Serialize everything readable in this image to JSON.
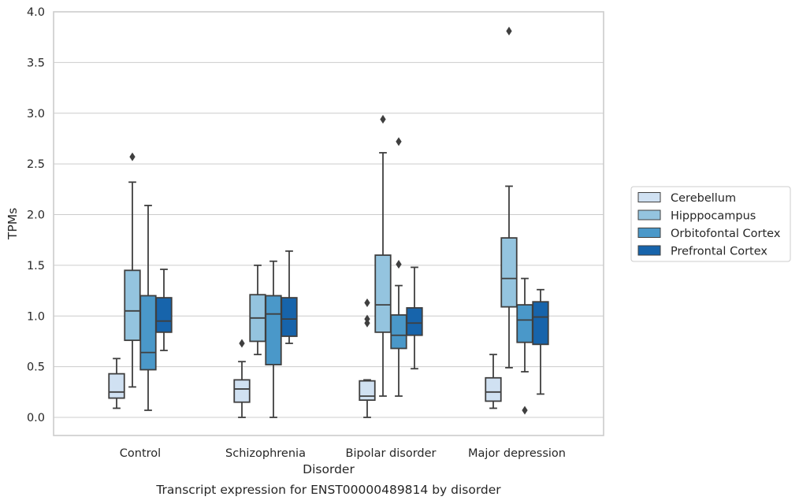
{
  "chart_data": {
    "type": "box",
    "title": "",
    "xlabel": "Disorder",
    "ylabel": "TPMs",
    "caption": "Transcript expression for ENST00000489814 by disorder",
    "ylim": [
      -0.18,
      4.0
    ],
    "yticks": [
      "0.0",
      "0.5",
      "1.0",
      "1.5",
      "2.0",
      "2.5",
      "3.0",
      "3.5",
      "4.0"
    ],
    "grid": "horizontal",
    "legend_position": "right",
    "categories": [
      "Control",
      "Schizophrenia",
      "Bipolar disorder",
      "Major depression"
    ],
    "series": [
      {
        "name": "Cerebellum",
        "color": "#d0e1f2",
        "boxes": [
          {
            "whislo": 0.09,
            "q1": 0.19,
            "med": 0.25,
            "q3": 0.43,
            "whishi": 0.58,
            "fliers": []
          },
          {
            "whislo": 0.0,
            "q1": 0.15,
            "med": 0.28,
            "q3": 0.37,
            "whishi": 0.55,
            "fliers": [
              0.73
            ]
          },
          {
            "whislo": 0.0,
            "q1": 0.17,
            "med": 0.21,
            "q3": 0.36,
            "whishi": 0.37,
            "fliers": [
              0.93,
              0.97,
              1.13
            ]
          },
          {
            "whislo": 0.09,
            "q1": 0.16,
            "med": 0.25,
            "q3": 0.39,
            "whishi": 0.62,
            "fliers": []
          }
        ]
      },
      {
        "name": "Hipppocampus",
        "color": "#94c4df",
        "boxes": [
          {
            "whislo": 0.3,
            "q1": 0.76,
            "med": 1.05,
            "q3": 1.45,
            "whishi": 2.32,
            "fliers": [
              2.57
            ]
          },
          {
            "whislo": 0.62,
            "q1": 0.75,
            "med": 0.98,
            "q3": 1.21,
            "whishi": 1.5,
            "fliers": []
          },
          {
            "whislo": 0.21,
            "q1": 0.84,
            "med": 1.11,
            "q3": 1.6,
            "whishi": 2.61,
            "fliers": [
              2.94
            ]
          },
          {
            "whislo": 0.49,
            "q1": 1.09,
            "med": 1.37,
            "q3": 1.77,
            "whishi": 2.28,
            "fliers": [
              3.81
            ]
          }
        ]
      },
      {
        "name": "Orbitofontal Cortex",
        "color": "#4a98c9",
        "boxes": [
          {
            "whislo": 0.07,
            "q1": 0.47,
            "med": 0.64,
            "q3": 1.2,
            "whishi": 2.09,
            "fliers": []
          },
          {
            "whislo": 0.0,
            "q1": 0.52,
            "med": 1.02,
            "q3": 1.2,
            "whishi": 1.54,
            "fliers": []
          },
          {
            "whislo": 0.21,
            "q1": 0.68,
            "med": 0.81,
            "q3": 1.01,
            "whishi": 1.3,
            "fliers": [
              1.51,
              2.72
            ]
          },
          {
            "whislo": 0.45,
            "q1": 0.74,
            "med": 0.96,
            "q3": 1.11,
            "whishi": 1.37,
            "fliers": [
              0.07
            ]
          }
        ]
      },
      {
        "name": "Prefrontal Cortex",
        "color": "#1764ab",
        "boxes": [
          {
            "whislo": 0.66,
            "q1": 0.84,
            "med": 0.95,
            "q3": 1.18,
            "whishi": 1.46,
            "fliers": []
          },
          {
            "whislo": 0.73,
            "q1": 0.8,
            "med": 0.97,
            "q3": 1.18,
            "whishi": 1.64,
            "fliers": []
          },
          {
            "whislo": 0.48,
            "q1": 0.81,
            "med": 0.93,
            "q3": 1.08,
            "whishi": 1.48,
            "fliers": []
          },
          {
            "whislo": 0.23,
            "q1": 0.72,
            "med": 0.99,
            "q3": 1.14,
            "whishi": 1.26,
            "fliers": []
          }
        ]
      }
    ]
  }
}
